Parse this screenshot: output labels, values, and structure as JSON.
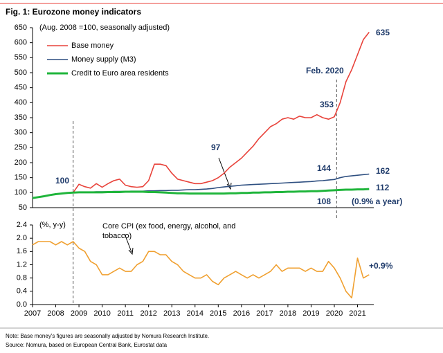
{
  "chart_data": [
    {
      "type": "line",
      "title": "Fig. 1: Eurozone money indicators",
      "x": [
        2007,
        2007.25,
        2007.5,
        2007.75,
        2008,
        2008.25,
        2008.5,
        2008.75,
        2009,
        2009.25,
        2009.5,
        2009.75,
        2010,
        2010.25,
        2010.5,
        2010.75,
        2011,
        2011.25,
        2011.5,
        2011.75,
        2012,
        2012.25,
        2012.5,
        2012.75,
        2013,
        2013.25,
        2013.5,
        2013.75,
        2014,
        2014.25,
        2014.5,
        2014.75,
        2015,
        2015.25,
        2015.5,
        2015.75,
        2016,
        2016.25,
        2016.5,
        2016.75,
        2017,
        2017.25,
        2017.5,
        2017.75,
        2018,
        2018.25,
        2018.5,
        2018.75,
        2019,
        2019.25,
        2019.5,
        2019.75,
        2020,
        2020.25,
        2020.5,
        2020.75,
        2021,
        2021.25,
        2021.5
      ],
      "series": [
        {
          "name": "Base money",
          "color": "#e8423a",
          "values": [
            null,
            null,
            null,
            null,
            null,
            null,
            null,
            100,
            128,
            120,
            115,
            130,
            118,
            130,
            140,
            145,
            125,
            120,
            118,
            120,
            140,
            195,
            195,
            190,
            165,
            145,
            140,
            135,
            130,
            130,
            135,
            140,
            150,
            165,
            185,
            200,
            215,
            235,
            255,
            280,
            300,
            320,
            330,
            345,
            350,
            345,
            355,
            350,
            350,
            360,
            350,
            345,
            353,
            400,
            470,
            510,
            560,
            610,
            635
          ]
        },
        {
          "name": "Money supply (M3)",
          "color": "#2e4f80",
          "values": [
            82,
            85,
            88,
            92,
            95,
            97,
            99,
            100,
            102,
            102,
            102,
            103,
            103,
            103,
            104,
            104,
            104,
            105,
            105,
            105,
            106,
            106,
            107,
            107,
            108,
            108,
            109,
            110,
            110,
            111,
            112,
            114,
            117,
            119,
            121,
            123,
            125,
            126,
            127,
            128,
            129,
            130,
            131,
            132,
            133,
            134,
            135,
            136,
            137,
            139,
            140,
            142,
            144,
            150,
            154,
            156,
            158,
            160,
            162
          ]
        },
        {
          "name": "Credit to Euro area residents",
          "color": "#1fb53b",
          "values": [
            82,
            85,
            88,
            92,
            95,
            97,
            99,
            100,
            101,
            101,
            101,
            101,
            101,
            102,
            102,
            102,
            103,
            103,
            103,
            103,
            102,
            102,
            101,
            100,
            99,
            98,
            98,
            97,
            97,
            97,
            97,
            97,
            97,
            97,
            98,
            98,
            99,
            99,
            100,
            100,
            101,
            101,
            102,
            102,
            103,
            103,
            104,
            104,
            105,
            105,
            106,
            107,
            108,
            109,
            110,
            110,
            111,
            111,
            112
          ]
        }
      ],
      "xlim": [
        2007,
        2021.7
      ],
      "ylim": [
        50,
        650
      ],
      "yticks": [
        50,
        100,
        150,
        200,
        250,
        300,
        350,
        400,
        450,
        500,
        550,
        600,
        650
      ],
      "vlines": [
        2008.75,
        2020.1
      ],
      "annotations": [
        "(Aug. 2008 =100, seasonally adjusted)",
        "100",
        "97",
        "144",
        "162",
        "353",
        "635",
        "108",
        "112",
        "(0.9% a year)",
        "Feb. 2020"
      ]
    },
    {
      "type": "line",
      "x": [
        2007,
        2007.25,
        2007.5,
        2007.75,
        2008,
        2008.25,
        2008.5,
        2008.75,
        2009,
        2009.25,
        2009.5,
        2009.75,
        2010,
        2010.25,
        2010.5,
        2010.75,
        2011,
        2011.25,
        2011.5,
        2011.75,
        2012,
        2012.25,
        2012.5,
        2012.75,
        2013,
        2013.25,
        2013.5,
        2013.75,
        2014,
        2014.25,
        2014.5,
        2014.75,
        2015,
        2015.25,
        2015.5,
        2015.75,
        2016,
        2016.25,
        2016.5,
        2016.75,
        2017,
        2017.25,
        2017.5,
        2017.75,
        2018,
        2018.25,
        2018.5,
        2018.75,
        2019,
        2019.25,
        2019.5,
        2019.75,
        2020,
        2020.25,
        2020.5,
        2020.75,
        2021,
        2021.25,
        2021.5
      ],
      "series": [
        {
          "color": "#f0a030",
          "values": [
            1.8,
            1.9,
            1.9,
            1.9,
            1.8,
            1.9,
            1.8,
            1.9,
            1.7,
            1.6,
            1.3,
            1.2,
            0.9,
            0.9,
            1.0,
            1.1,
            1.0,
            1.0,
            1.2,
            1.3,
            1.6,
            1.6,
            1.5,
            1.5,
            1.3,
            1.2,
            1.0,
            0.9,
            0.8,
            0.8,
            0.9,
            0.7,
            0.6,
            0.8,
            0.9,
            1.0,
            0.9,
            0.8,
            0.9,
            0.8,
            0.9,
            1.0,
            1.2,
            1.0,
            1.1,
            1.1,
            1.1,
            1.0,
            1.1,
            1.0,
            1.0,
            1.3,
            1.1,
            0.8,
            0.4,
            0.2,
            1.4,
            0.8,
            0.9
          ]
        }
      ],
      "xlim": [
        2007,
        2021.7
      ],
      "xticks": [
        2007,
        2008,
        2009,
        2010,
        2011,
        2012,
        2013,
        2014,
        2015,
        2016,
        2017,
        2018,
        2019,
        2020,
        2021
      ],
      "ylim": [
        0,
        2.4
      ],
      "yticks": [
        {
          "value": 0,
          "label": "0.0"
        },
        0.4,
        0.8,
        1.2,
        1.6,
        {
          "value": 2,
          "label": "2.0"
        },
        2.4
      ],
      "annotations": [
        "(%, y-y)",
        "Core CPI (ex food, energy, alcohol, and",
        "tobacco)",
        "+0.9%"
      ]
    }
  ],
  "notes": [
    "Note: Base money's figures are seasonally adjusted by Nomura Research Institute.",
    "Source: Nomura, based on European Central Bank, Eurostat data"
  ]
}
